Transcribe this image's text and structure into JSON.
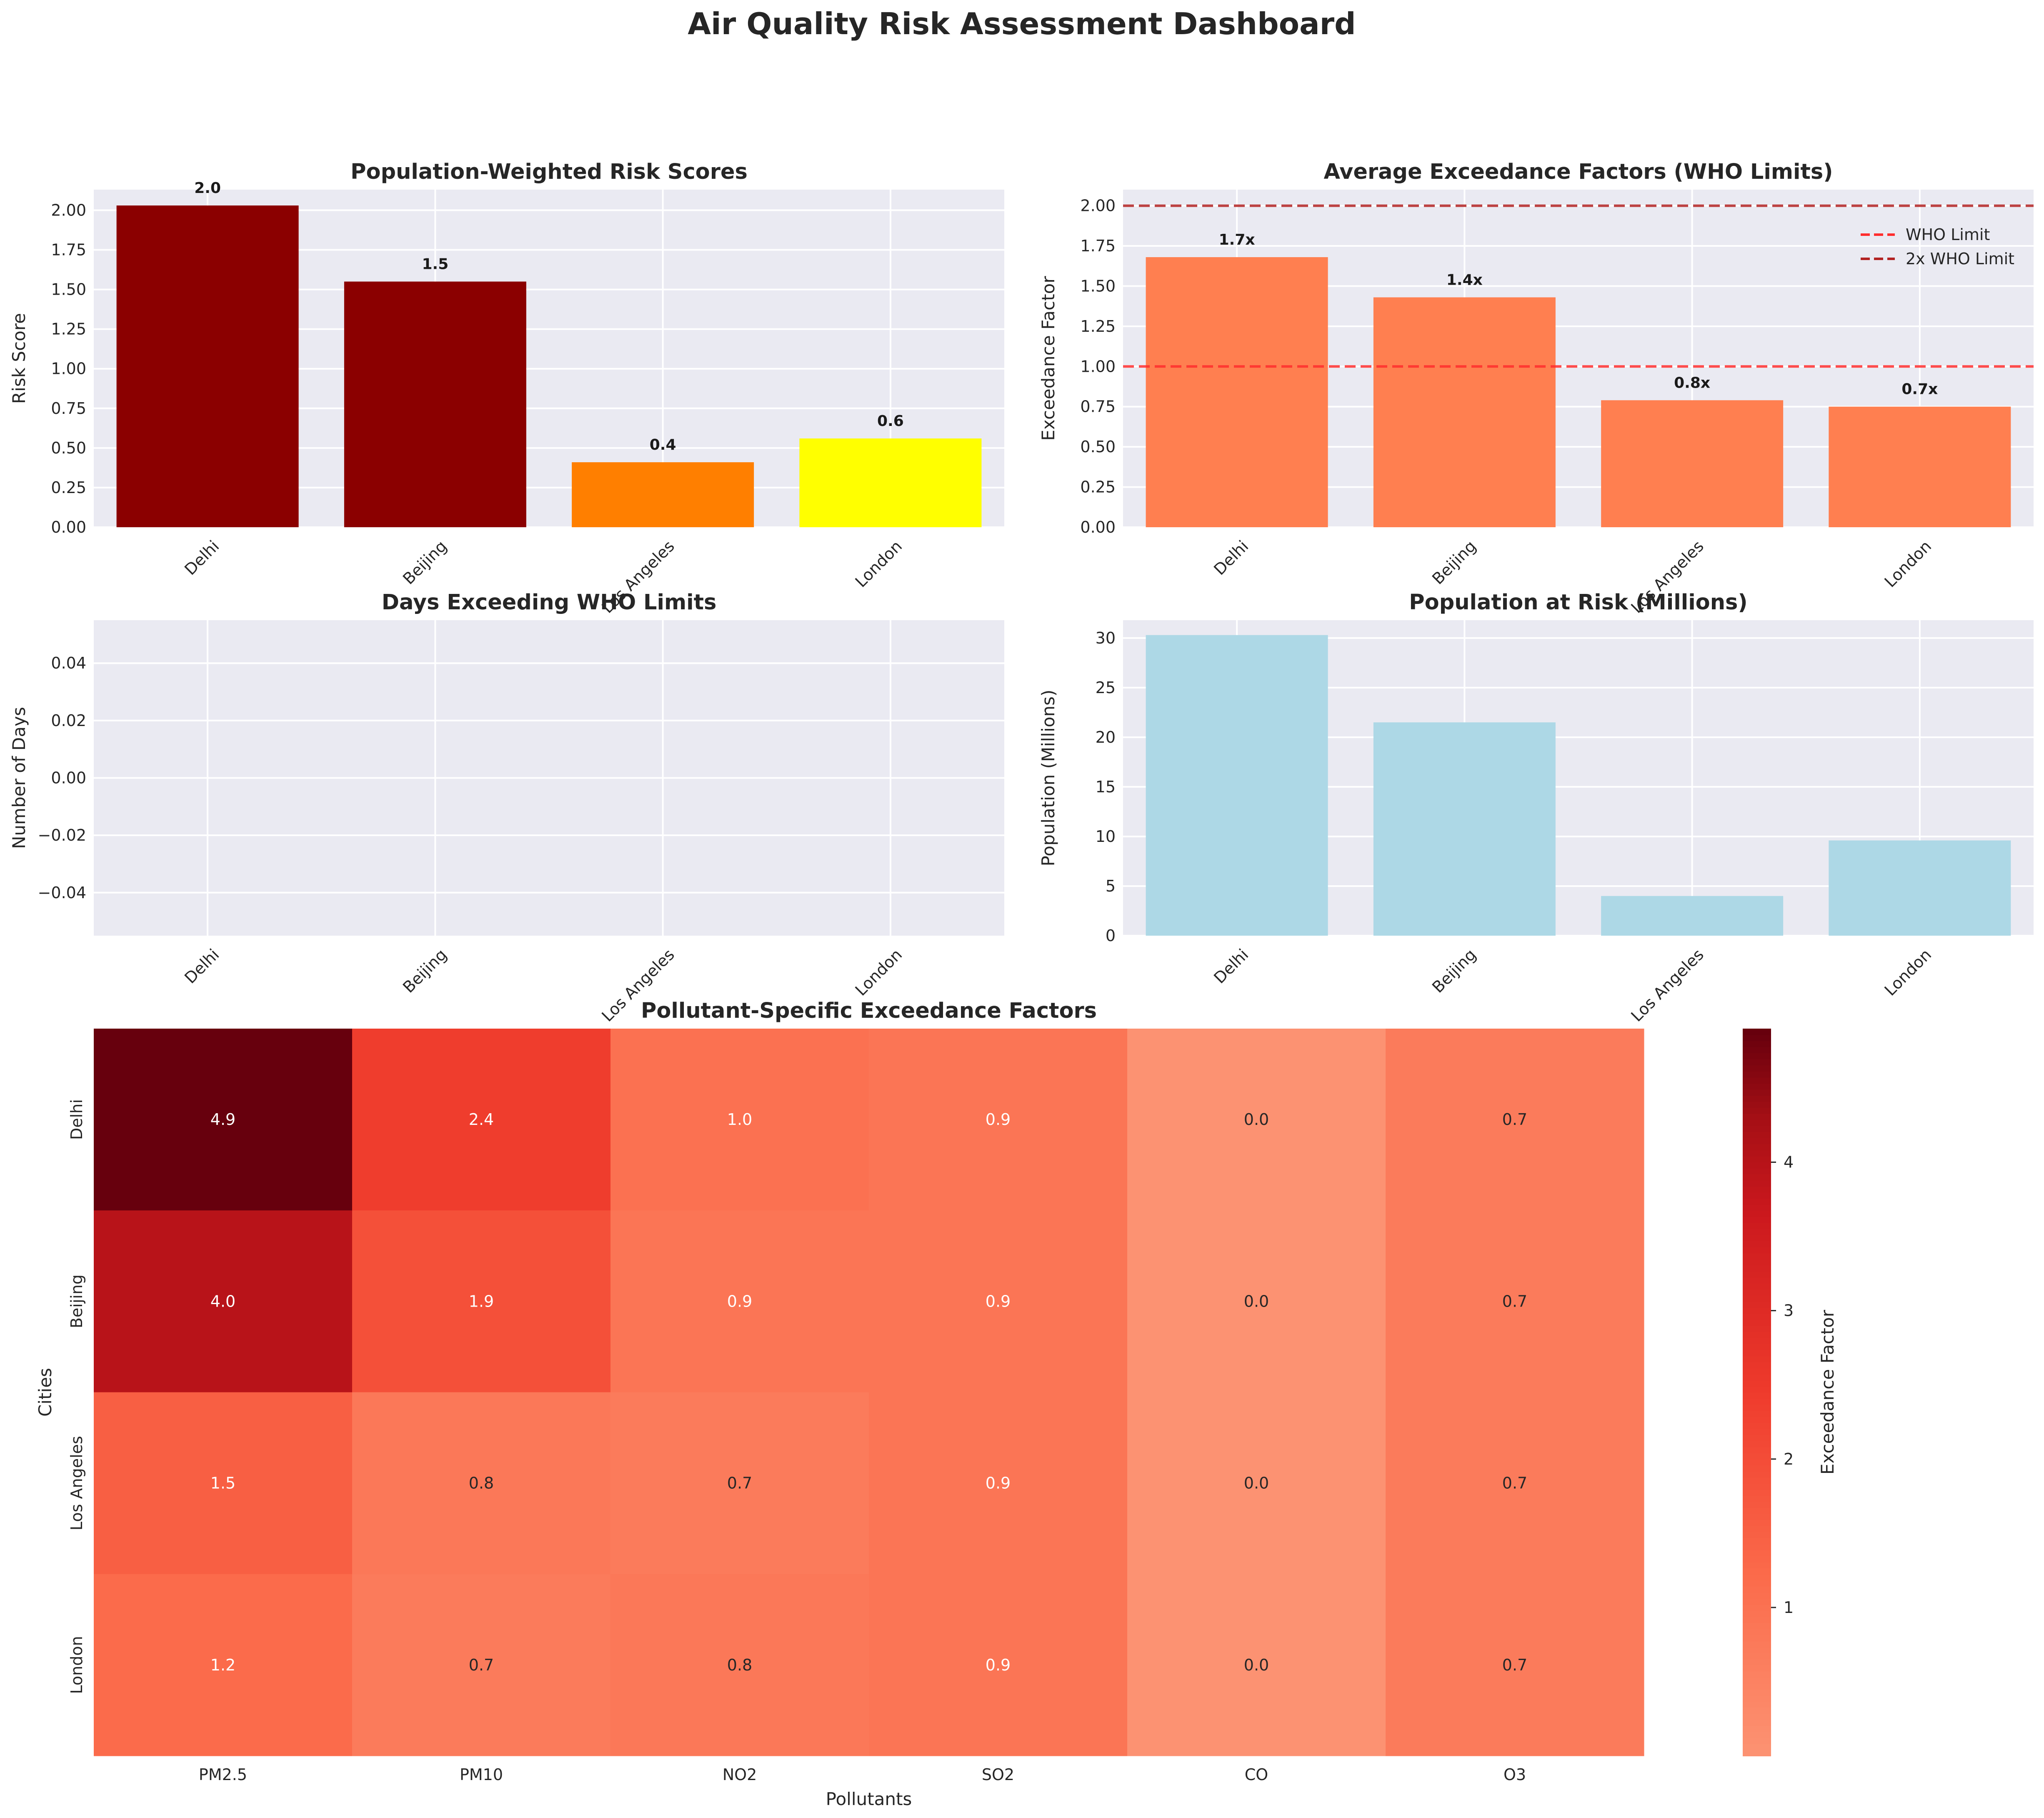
{
  "title": "Air Quality Risk Assessment Dashboard",
  "chart_data": [
    {
      "id": "risk",
      "type": "bar",
      "title": "Population-Weighted Risk Scores",
      "xlabel": "",
      "ylabel": "Risk Score",
      "categories": [
        "Delhi",
        "Beijing",
        "Los Angeles",
        "London"
      ],
      "values": [
        2.03,
        1.55,
        0.41,
        0.56
      ],
      "value_labels": [
        "2.0",
        "1.5",
        "0.4",
        "0.6"
      ],
      "bar_colors": [
        "#8b0000",
        "#8b0000",
        "#ff7f00",
        "#ffff00"
      ],
      "ylim": [
        0,
        2.13
      ],
      "yticks": [
        0,
        0.25,
        0.5,
        0.75,
        1.0,
        1.25,
        1.5,
        1.75,
        2.0
      ],
      "ytick_labels": [
        "0.00",
        "0.25",
        "0.50",
        "0.75",
        "1.00",
        "1.25",
        "1.50",
        "1.75",
        "2.00"
      ],
      "grid": true
    },
    {
      "id": "exceed",
      "type": "bar",
      "title": "Average Exceedance Factors (WHO Limits)",
      "xlabel": "",
      "ylabel": "Exceedance Factor",
      "categories": [
        "Delhi",
        "Beijing",
        "Los Angeles",
        "London"
      ],
      "values": [
        1.68,
        1.43,
        0.79,
        0.75
      ],
      "value_labels": [
        "1.7x",
        "1.4x",
        "0.8x",
        "0.7x"
      ],
      "bar_color": "#ff7f50",
      "ylim": [
        0,
        2.1
      ],
      "yticks": [
        0,
        0.25,
        0.5,
        0.75,
        1.0,
        1.25,
        1.5,
        1.75,
        2.0
      ],
      "ytick_labels": [
        "0.00",
        "0.25",
        "0.50",
        "0.75",
        "1.00",
        "1.25",
        "1.50",
        "1.75",
        "2.00"
      ],
      "reference_lines": [
        {
          "name": "WHO Limit",
          "y": 1.0,
          "color": "#ff2d2d"
        },
        {
          "name": "2x WHO Limit",
          "y": 2.0,
          "color": "#b22222"
        }
      ],
      "legend": "top-right",
      "grid": true
    },
    {
      "id": "days",
      "type": "bar",
      "title": "Days Exceeding WHO Limits",
      "xlabel": "",
      "ylabel": "Number of Days",
      "categories": [
        "Delhi",
        "Beijing",
        "Los Angeles",
        "London"
      ],
      "values": [
        0,
        0,
        0,
        0
      ],
      "ylim": [
        -0.055,
        0.055
      ],
      "yticks": [
        -0.04,
        -0.02,
        0.0,
        0.02,
        0.04
      ],
      "ytick_labels": [
        "−0.04",
        "−0.02",
        "0.00",
        "0.02",
        "0.04"
      ],
      "grid": true
    },
    {
      "id": "pop",
      "type": "bar",
      "title": "Population at Risk (Millions)",
      "xlabel": "",
      "ylabel": "Population (Millions)",
      "categories": [
        "Delhi",
        "Beijing",
        "Los Angeles",
        "London"
      ],
      "values": [
        30.3,
        21.5,
        4.0,
        9.6
      ],
      "bar_color": "#add8e6",
      "ylim": [
        0,
        31.8
      ],
      "yticks": [
        0,
        5,
        10,
        15,
        20,
        25,
        30
      ],
      "ytick_labels": [
        "0",
        "5",
        "10",
        "15",
        "20",
        "25",
        "30"
      ],
      "grid": true
    },
    {
      "id": "heat",
      "type": "heatmap",
      "title": "Pollutant-Specific Exceedance Factors",
      "xlabel": "Pollutants",
      "ylabel": "Cities",
      "x": [
        "PM2.5",
        "PM10",
        "NO2",
        "SO2",
        "CO",
        "O3"
      ],
      "y": [
        "Delhi",
        "Beijing",
        "Los Angeles",
        "London"
      ],
      "values": [
        [
          4.9,
          2.4,
          1.0,
          0.9,
          0.0,
          0.7
        ],
        [
          4.0,
          1.9,
          0.9,
          0.9,
          0.0,
          0.7
        ],
        [
          1.5,
          0.8,
          0.7,
          0.9,
          0.0,
          0.7
        ],
        [
          1.2,
          0.7,
          0.8,
          0.9,
          0.0,
          0.7
        ]
      ],
      "cell_labels": [
        [
          "4.9",
          "2.4",
          "1.0",
          "0.9",
          "0.0",
          "0.7"
        ],
        [
          "4.0",
          "1.9",
          "0.9",
          "0.9",
          "0.0",
          "0.7"
        ],
        [
          "1.5",
          "0.8",
          "0.7",
          "0.9",
          "0.0",
          "0.7"
        ],
        [
          "1.2",
          "0.7",
          "0.8",
          "0.9",
          "0.0",
          "0.7"
        ]
      ],
      "colorbar": {
        "label": "Exceedance Factor",
        "range": [
          0,
          4.9
        ],
        "ticks": [
          1,
          2,
          3,
          4
        ],
        "tick_labels": [
          "1",
          "2",
          "3",
          "4"
        ],
        "colormap": "Reds"
      }
    }
  ]
}
